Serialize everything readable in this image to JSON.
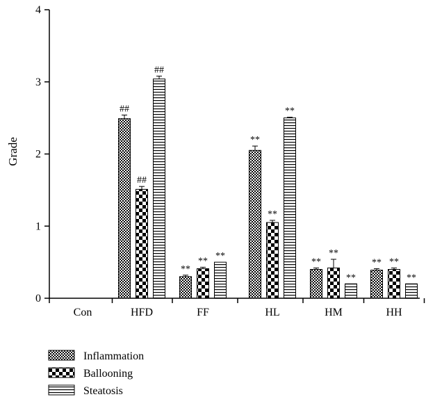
{
  "chart_data": {
    "type": "bar",
    "ylabel": "Grade",
    "xlabel": "",
    "ylim": [
      0,
      4
    ],
    "yticks": [
      "0",
      "1",
      "2",
      "3",
      "4"
    ],
    "categories": [
      "Con",
      "HFD",
      "FF",
      "HL",
      "HM",
      "HH"
    ],
    "series": [
      {
        "name": "Inflammation",
        "pattern": "fine-checker",
        "values": [
          0,
          2.49,
          0.3,
          2.05,
          0.4,
          0.39
        ],
        "errors": [
          0,
          0.05,
          0.02,
          0.06,
          0.02,
          0.02
        ],
        "annotations": [
          "",
          "##",
          "**",
          "**",
          "**",
          "**"
        ]
      },
      {
        "name": "Ballooning",
        "pattern": "coarse-checker",
        "values": [
          0,
          1.51,
          0.41,
          1.05,
          0.42,
          0.4
        ],
        "errors": [
          0,
          0.04,
          0.02,
          0.03,
          0.12,
          0.02
        ],
        "annotations": [
          "",
          "##",
          "**",
          "**",
          "**",
          "**"
        ]
      },
      {
        "name": "Steatosis",
        "pattern": "horizontal-lines",
        "values": [
          0,
          3.04,
          0.5,
          2.5,
          0.2,
          0.2
        ],
        "errors": [
          0,
          0.04,
          0.0,
          0.01,
          0.0,
          0.0
        ],
        "annotations": [
          "",
          "##",
          "**",
          "**",
          "**",
          "**"
        ]
      }
    ],
    "legend_placement": "bottom-left",
    "grid": false
  }
}
